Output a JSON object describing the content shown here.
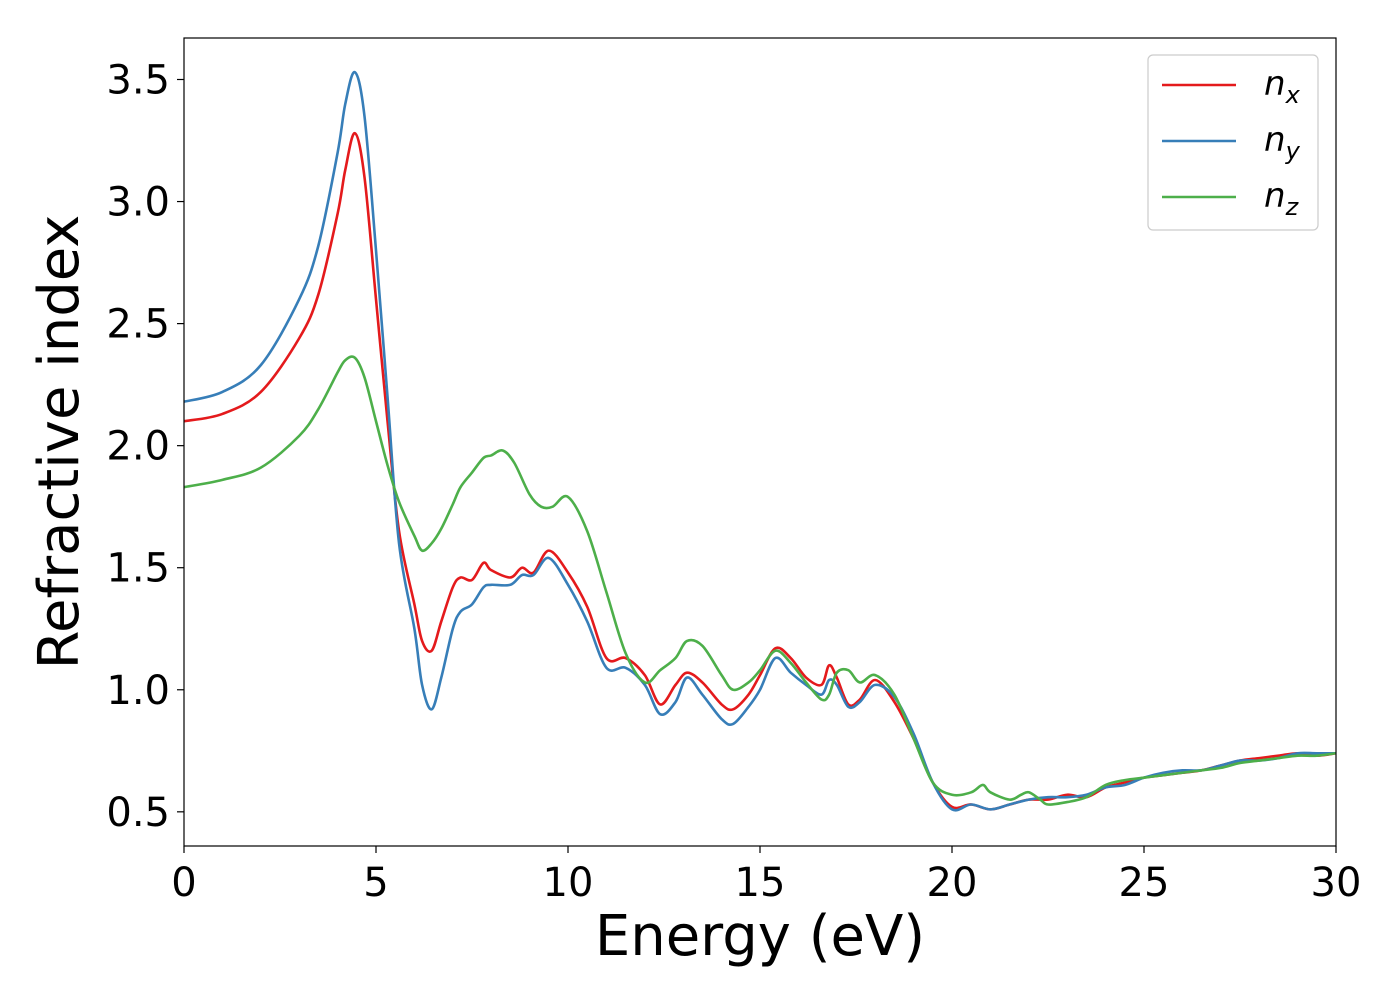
{
  "chart_data": {
    "type": "line",
    "xlabel": "Energy (eV)",
    "ylabel": "Refractive index",
    "xlim": [
      0,
      30
    ],
    "ylim": [
      0.36,
      3.67
    ],
    "xticks": [
      0,
      5,
      10,
      15,
      20,
      25,
      30
    ],
    "xtick_labels": [
      "0",
      "5",
      "10",
      "15",
      "20",
      "25",
      "30"
    ],
    "yticks": [
      0.5,
      1.0,
      1.5,
      2.0,
      2.5,
      3.0,
      3.5
    ],
    "ytick_labels": [
      "0.5",
      "1.0",
      "1.5",
      "2.0",
      "2.5",
      "3.0",
      "3.5"
    ],
    "grid": false,
    "legend_position": "top-right",
    "series": [
      {
        "name": "n",
        "sub": "x",
        "color": "#e41a1c",
        "x": [
          0,
          1,
          2,
          3,
          3.5,
          4,
          4.2,
          4.45,
          4.7,
          5,
          5.3,
          5.6,
          6,
          6.2,
          6.45,
          6.7,
          7,
          7.2,
          7.5,
          7.8,
          8,
          8.5,
          8.8,
          9.1,
          9.5,
          10,
          10.5,
          11,
          11.5,
          12,
          12.4,
          12.8,
          13.1,
          13.5,
          14,
          14.3,
          14.7,
          15,
          15.4,
          15.8,
          16.2,
          16.6,
          16.8,
          17,
          17.3,
          17.6,
          18,
          18.5,
          19,
          19.5,
          20,
          20.5,
          21,
          21.5,
          22,
          22.5,
          23,
          23.5,
          24,
          24.5,
          25,
          25.5,
          26,
          26.5,
          27,
          27.5,
          28,
          28.5,
          29,
          29.5,
          30
        ],
        "y": [
          2.1,
          2.13,
          2.22,
          2.44,
          2.62,
          2.95,
          3.13,
          3.28,
          3.1,
          2.6,
          2.1,
          1.65,
          1.35,
          1.2,
          1.16,
          1.28,
          1.42,
          1.46,
          1.45,
          1.52,
          1.49,
          1.46,
          1.5,
          1.48,
          1.57,
          1.48,
          1.34,
          1.13,
          1.13,
          1.06,
          0.94,
          1.02,
          1.07,
          1.03,
          0.94,
          0.92,
          0.98,
          1.06,
          1.17,
          1.13,
          1.05,
          1.02,
          1.1,
          1.05,
          0.94,
          0.96,
          1.04,
          0.95,
          0.8,
          0.62,
          0.52,
          0.53,
          0.51,
          0.53,
          0.55,
          0.55,
          0.57,
          0.56,
          0.6,
          0.62,
          0.64,
          0.65,
          0.66,
          0.67,
          0.69,
          0.71,
          0.72,
          0.73,
          0.74,
          0.73,
          0.74
        ]
      },
      {
        "name": "n",
        "sub": "y",
        "color": "#377eb8",
        "x": [
          0,
          1,
          2,
          3,
          3.5,
          4,
          4.2,
          4.45,
          4.7,
          5,
          5.3,
          5.6,
          6,
          6.2,
          6.45,
          6.7,
          7,
          7.2,
          7.5,
          7.8,
          8,
          8.5,
          8.8,
          9.1,
          9.5,
          10,
          10.5,
          11,
          11.5,
          12,
          12.4,
          12.8,
          13.1,
          13.5,
          14,
          14.3,
          14.7,
          15,
          15.4,
          15.8,
          16.2,
          16.6,
          16.8,
          17,
          17.3,
          17.6,
          18,
          18.5,
          19,
          19.5,
          20,
          20.5,
          21,
          21.5,
          22,
          22.5,
          23,
          23.5,
          24,
          24.5,
          25,
          25.5,
          26,
          26.5,
          27,
          27.5,
          28,
          28.5,
          29,
          29.5,
          30
        ],
        "y": [
          2.18,
          2.22,
          2.33,
          2.6,
          2.82,
          3.2,
          3.4,
          3.53,
          3.35,
          2.8,
          2.2,
          1.6,
          1.25,
          1.02,
          0.92,
          1.05,
          1.25,
          1.32,
          1.35,
          1.42,
          1.43,
          1.43,
          1.47,
          1.47,
          1.54,
          1.43,
          1.28,
          1.09,
          1.09,
          1.02,
          0.9,
          0.95,
          1.05,
          0.98,
          0.88,
          0.86,
          0.93,
          1.0,
          1.13,
          1.07,
          1.02,
          0.98,
          1.04,
          1.02,
          0.93,
          0.95,
          1.02,
          0.97,
          0.82,
          0.62,
          0.51,
          0.53,
          0.51,
          0.53,
          0.55,
          0.56,
          0.56,
          0.57,
          0.6,
          0.61,
          0.64,
          0.66,
          0.67,
          0.67,
          0.69,
          0.71,
          0.71,
          0.72,
          0.74,
          0.74,
          0.74
        ]
      },
      {
        "name": "n",
        "sub": "z",
        "color": "#4daf4a",
        "x": [
          0,
          1,
          2,
          3,
          3.5,
          4,
          4.2,
          4.45,
          4.7,
          5,
          5.3,
          5.6,
          6,
          6.2,
          6.45,
          6.7,
          7,
          7.2,
          7.5,
          7.8,
          8,
          8.3,
          8.6,
          9,
          9.3,
          9.6,
          10,
          10.5,
          11,
          11.5,
          12,
          12.4,
          12.8,
          13.1,
          13.5,
          14,
          14.3,
          14.7,
          15,
          15.4,
          15.8,
          16.2,
          16.6,
          16.8,
          17,
          17.3,
          17.6,
          18,
          18.5,
          19,
          19.5,
          20,
          20.5,
          20.8,
          21,
          21.5,
          21.8,
          22,
          22.3,
          22.5,
          23,
          23.5,
          24,
          24.5,
          25,
          25.5,
          26,
          26.5,
          27,
          27.5,
          28,
          28.5,
          29,
          29.5,
          30
        ],
        "y": [
          1.83,
          1.86,
          1.91,
          2.04,
          2.15,
          2.3,
          2.35,
          2.36,
          2.28,
          2.1,
          1.92,
          1.77,
          1.63,
          1.57,
          1.6,
          1.66,
          1.76,
          1.83,
          1.89,
          1.95,
          1.96,
          1.98,
          1.93,
          1.8,
          1.75,
          1.75,
          1.79,
          1.65,
          1.4,
          1.15,
          1.03,
          1.08,
          1.13,
          1.2,
          1.18,
          1.06,
          1.0,
          1.03,
          1.08,
          1.16,
          1.11,
          1.03,
          0.96,
          0.98,
          1.07,
          1.08,
          1.03,
          1.06,
          0.98,
          0.8,
          0.62,
          0.57,
          0.58,
          0.61,
          0.58,
          0.55,
          0.57,
          0.58,
          0.55,
          0.53,
          0.54,
          0.56,
          0.61,
          0.63,
          0.64,
          0.65,
          0.66,
          0.67,
          0.68,
          0.7,
          0.71,
          0.72,
          0.73,
          0.73,
          0.74
        ]
      }
    ]
  }
}
